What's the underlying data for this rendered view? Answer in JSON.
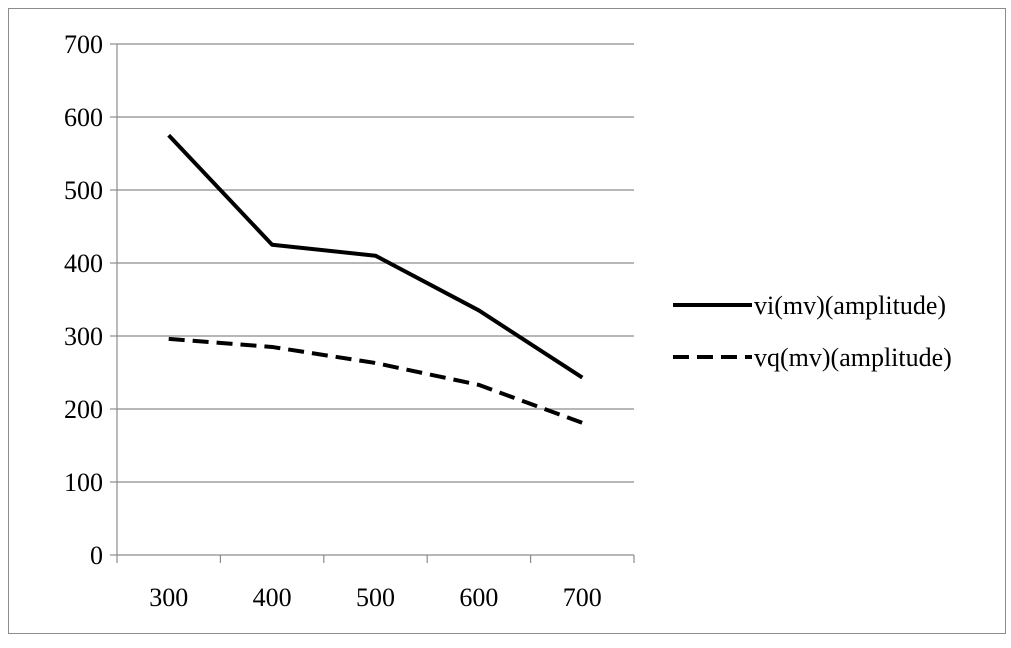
{
  "chart_data": {
    "type": "line",
    "title": "",
    "xlabel": "",
    "ylabel": "",
    "categories": [
      "300",
      "400",
      "500",
      "600",
      "700"
    ],
    "ylim": [
      0,
      700
    ],
    "yticks": [
      0,
      100,
      200,
      300,
      400,
      500,
      600,
      700
    ],
    "grid": true,
    "legend_position": "right",
    "series": [
      {
        "name": "vi(mv)(amplitude)",
        "values": [
          575,
          425,
          410,
          335,
          243
        ],
        "style": "solid",
        "color": "#000000"
      },
      {
        "name": "vq(mv)(amplitude)",
        "values": [
          296,
          285,
          263,
          233,
          181
        ],
        "style": "dashed",
        "color": "#000000"
      }
    ]
  },
  "colors": {
    "gridline": "#8c8c8c",
    "axis": "#8c8c8c",
    "line": "#000000"
  }
}
